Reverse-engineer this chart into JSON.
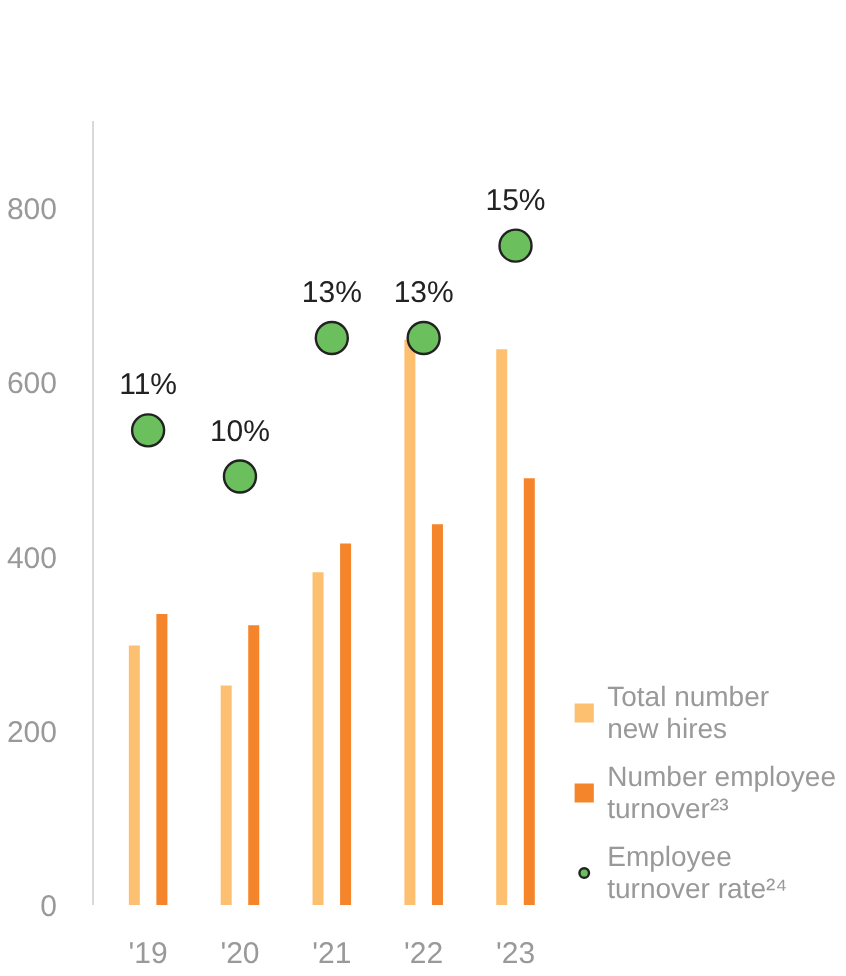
{
  "chart_data": {
    "type": "bar",
    "categories": [
      "'19",
      "'20",
      "'21",
      "'22",
      "'23"
    ],
    "ylim": [
      0,
      900
    ],
    "yticks": [
      0,
      200,
      400,
      600,
      800
    ],
    "y2lim": [
      0.72,
      17.7
    ],
    "grid": false,
    "legend": "bottom right",
    "marker": "circle",
    "series": [
      {
        "name": "Total number new hires",
        "color": "#fdc070",
        "values": [
          298,
          252,
          382,
          649,
          638
        ]
      },
      {
        "name": "Number employee turnover²³",
        "color": "#f5852a",
        "values": [
          334,
          321,
          415,
          437,
          490
        ]
      },
      {
        "name": "Employee turnover rate²⁴",
        "type": "scatter",
        "axis": "y2",
        "color": "#6cbf5d",
        "values": [
          11,
          10,
          13,
          13,
          15
        ],
        "value_labels": [
          "11%",
          "10%",
          "13%",
          "13%",
          "15%"
        ]
      }
    ]
  }
}
